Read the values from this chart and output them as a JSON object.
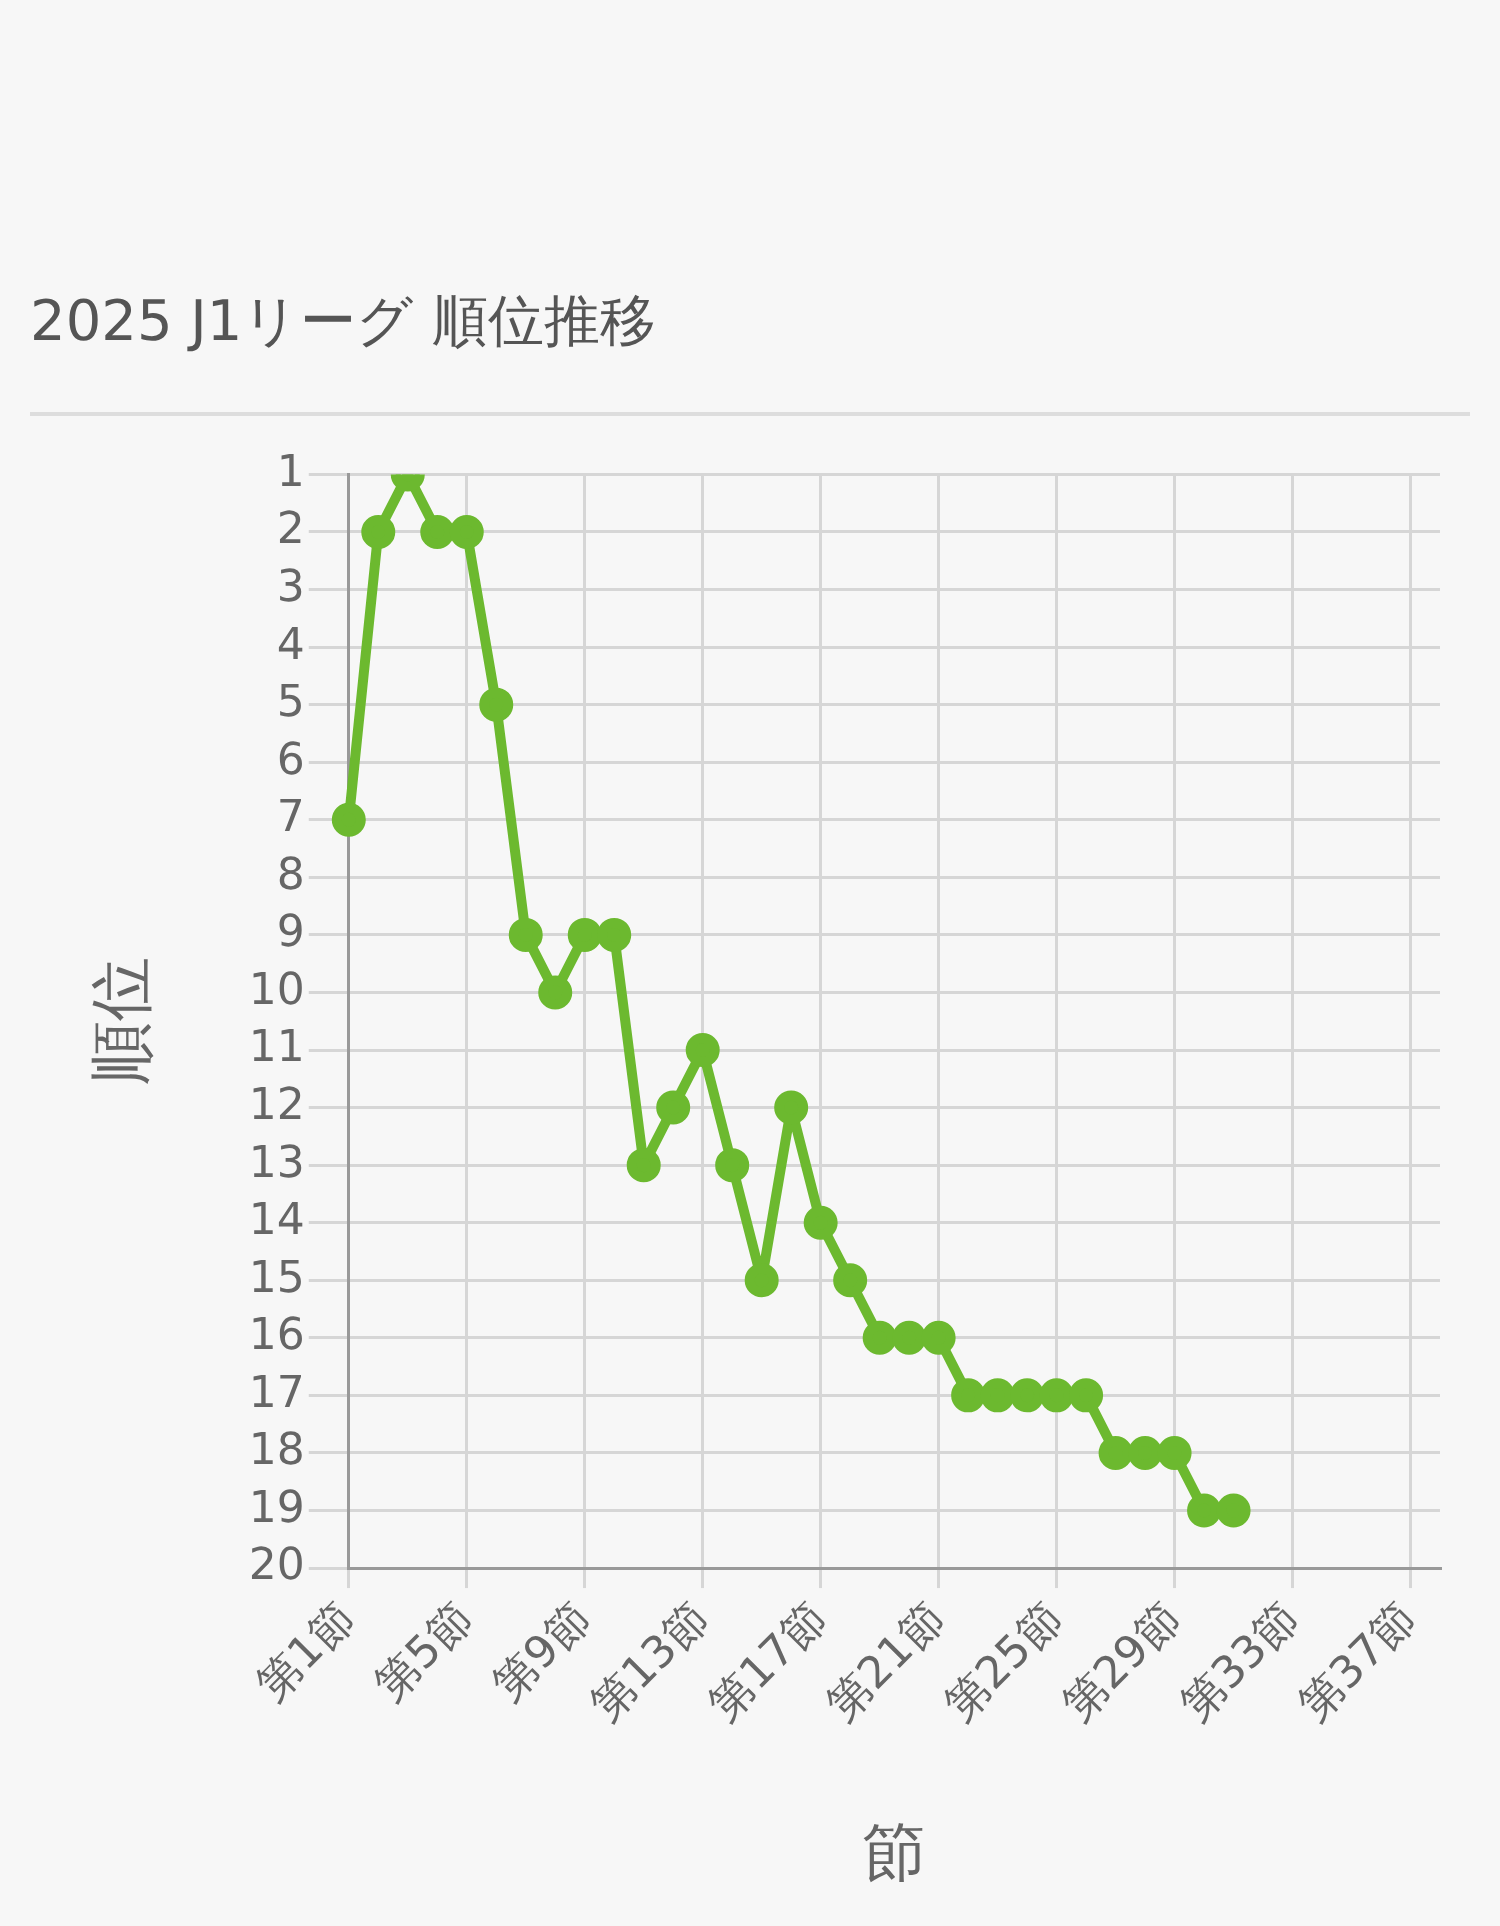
{
  "chart_data": {
    "type": "line",
    "title": "2025 J1リーグ 順位推移",
    "xlabel": "節",
    "ylabel": "順位",
    "categories": [
      "第1節",
      null,
      null,
      null,
      "第5節",
      null,
      null,
      null,
      "第9節",
      null,
      null,
      null,
      "第13節",
      null,
      null,
      null,
      "第17節",
      null,
      null,
      null,
      "第21節",
      null,
      null,
      null,
      "第25節",
      null,
      null,
      null,
      "第29節",
      null,
      null,
      null,
      "第33節",
      null,
      null,
      null,
      "第37節",
      null
    ],
    "series": [
      {
        "color": "#6cb92f",
        "values": [
          7,
          2,
          1,
          2,
          2,
          5,
          9,
          10,
          9,
          9,
          13,
          12,
          11,
          13,
          15,
          12,
          14,
          15,
          16,
          16,
          16,
          17,
          17,
          17,
          17,
          17,
          18,
          18,
          18,
          19,
          19,
          null,
          null,
          null,
          null,
          null,
          null,
          null
        ]
      }
    ],
    "ylim": [
      20,
      1
    ],
    "yticks": [
      1,
      2,
      3,
      4,
      5,
      6,
      7,
      8,
      9,
      10,
      11,
      12,
      13,
      14,
      15,
      16,
      17,
      18,
      19,
      20
    ],
    "grid": true,
    "legend": false,
    "marker": "circle",
    "line_style": "solid"
  }
}
